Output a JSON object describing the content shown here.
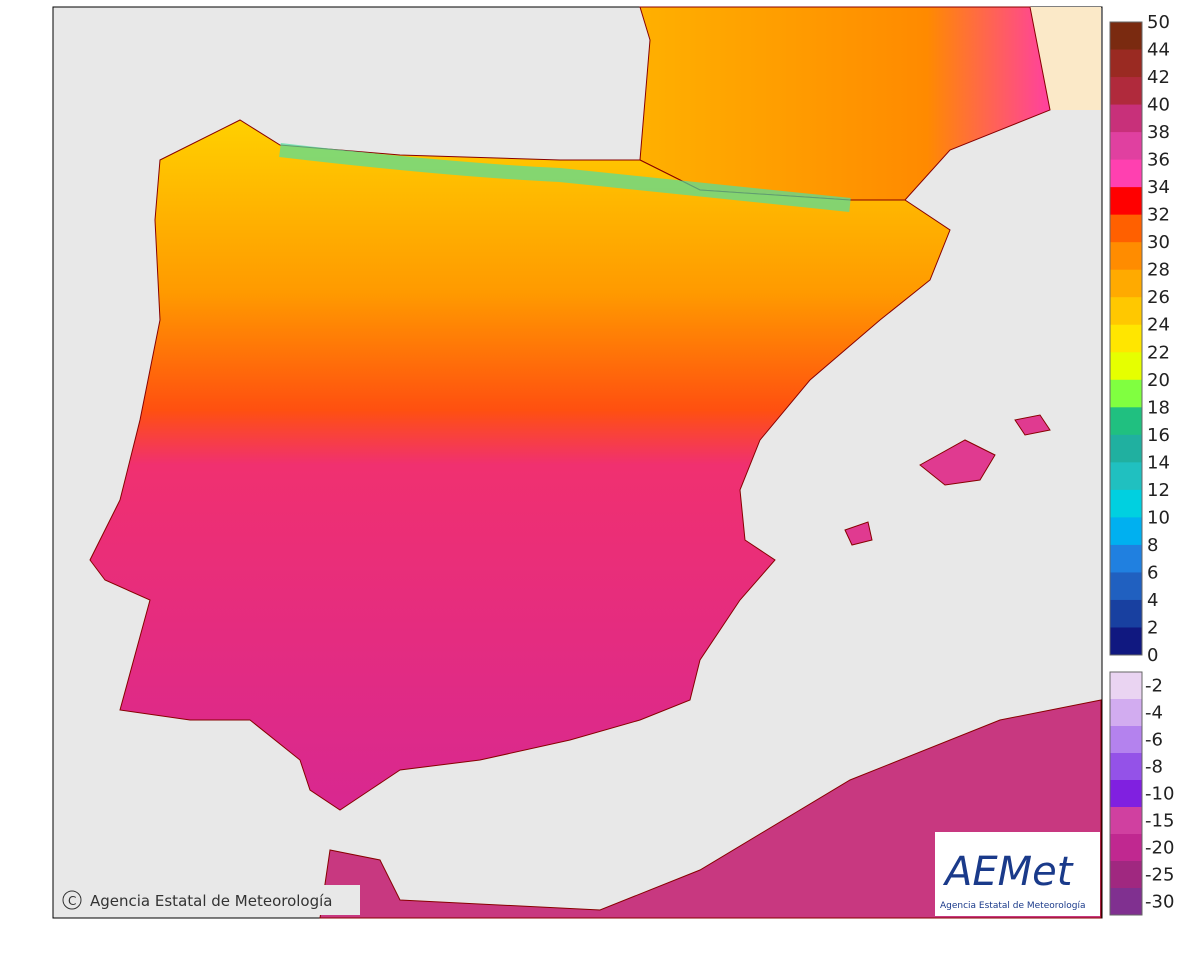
{
  "map": {
    "copyright": "Agencia Estatal de Meteorología",
    "logo": {
      "name": "AEMet",
      "subtitle": "Agencia Estatal de Meteorología"
    }
  },
  "legend": {
    "upper": {
      "labels": [
        "50",
        "44",
        "42",
        "40",
        "38",
        "36",
        "34",
        "32",
        "30",
        "28",
        "26",
        "24",
        "22",
        "20",
        "18",
        "16",
        "14",
        "12",
        "10",
        "8",
        "6",
        "4",
        "2",
        "0"
      ],
      "colors": [
        "#7a2a10",
        "#9a2a22",
        "#b02a3c",
        "#c8307a",
        "#e040a0",
        "#ff40b0",
        "#ff0000",
        "#ff6000",
        "#ff8c00",
        "#ffaa00",
        "#ffc800",
        "#ffe600",
        "#e6ff00",
        "#80ff40",
        "#20c080",
        "#20b0a0",
        "#20c0c0",
        "#00d0e0",
        "#00b0f0",
        "#2080e0",
        "#2060c0",
        "#1840a0",
        "#101880"
      ]
    },
    "lower": {
      "labels": [
        "-2",
        "-4",
        "-6",
        "-8",
        "-10",
        "-15",
        "-20",
        "-25",
        "-30"
      ],
      "colors": [
        "#ead4f2",
        "#d2acf0",
        "#b482ee",
        "#9452e8",
        "#8020e0",
        "#d040a0",
        "#c02890",
        "#a02880",
        "#803090"
      ]
    }
  }
}
